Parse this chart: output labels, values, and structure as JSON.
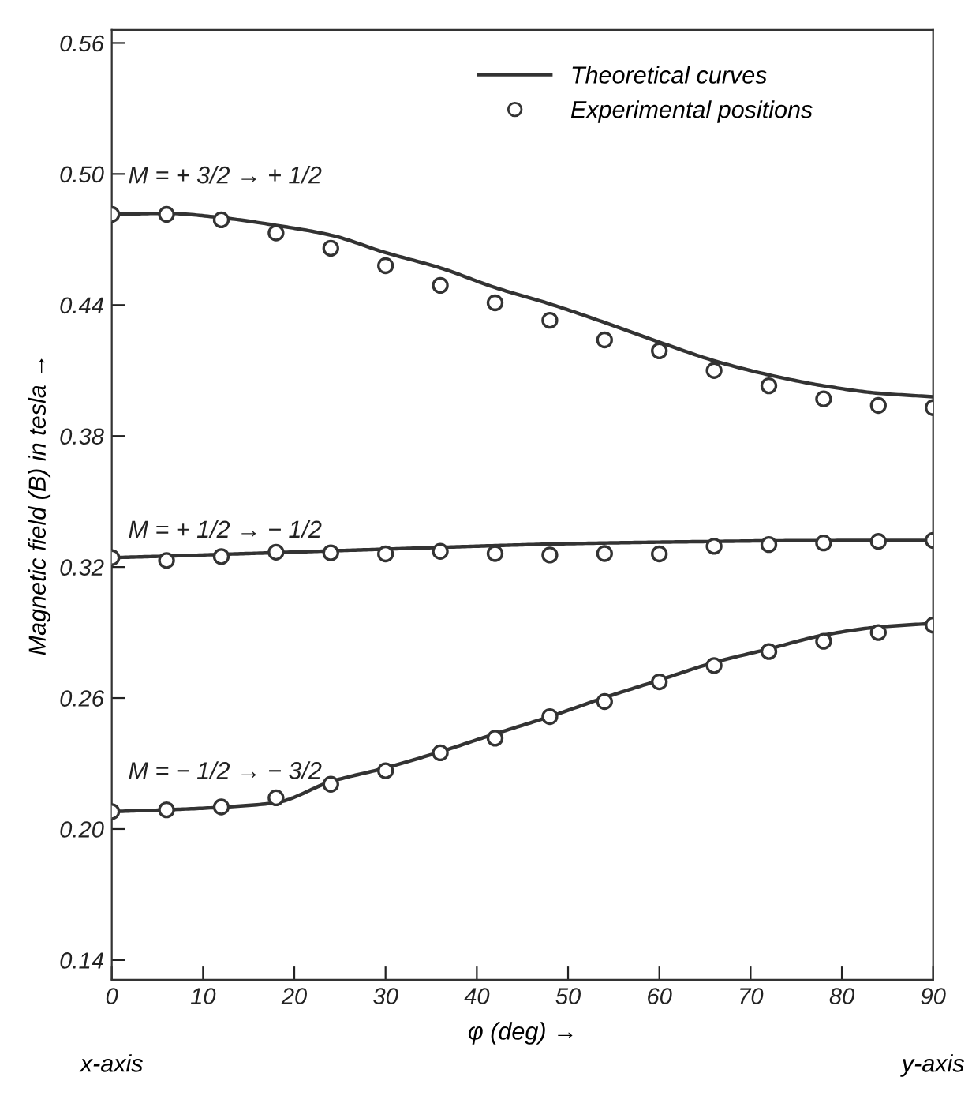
{
  "chart_data": {
    "type": "line",
    "xlabel": "φ (deg) →",
    "ylabel": "Magnetic field (B) in tesla →",
    "xlim": [
      0,
      90
    ],
    "xticks": [
      0,
      10,
      20,
      30,
      40,
      50,
      60,
      70,
      80,
      90
    ],
    "ylim": [
      0.131,
      0.566
    ],
    "yticks": [
      0.14,
      {
        "value": 0.2,
        "label": "0.20"
      },
      0.26,
      0.32,
      0.38,
      0.44,
      {
        "value": 0.5,
        "label": "0.50"
      },
      0.56
    ],
    "legend": "top right",
    "grid": false,
    "series": [
      {
        "name": "Theoretical curves",
        "color": "#333333",
        "marker": "none",
        "line_style": "solid",
        "x": [
          0,
          6,
          12,
          18,
          24,
          30,
          36,
          42,
          48,
          54,
          60,
          66,
          72,
          78,
          84,
          90
        ],
        "values": [
          0.4815,
          0.482,
          0.48,
          0.4765,
          0.472,
          0.464,
          0.457,
          0.448,
          0.4405,
          0.432,
          0.423,
          0.4145,
          0.408,
          0.403,
          0.3996,
          0.398
        ]
      },
      {
        "color": "#333333",
        "marker": "none",
        "line_style": "solid",
        "x": [
          0,
          6,
          12,
          18,
          24,
          30,
          36,
          42,
          48,
          54,
          60,
          66,
          72,
          78,
          84,
          90
        ],
        "values": [
          0.3243,
          0.325,
          0.3258,
          0.3266,
          0.3274,
          0.3282,
          0.329,
          0.3298,
          0.3305,
          0.331,
          0.3314,
          0.3317,
          0.332,
          0.3321,
          0.3322,
          0.3322
        ]
      },
      {
        "color": "#333333",
        "marker": "none",
        "line_style": "solid",
        "x": [
          0,
          6,
          12,
          18,
          24,
          30,
          36,
          42,
          48,
          54,
          60,
          66,
          72,
          78,
          84,
          90
        ],
        "values": [
          0.208,
          0.2088,
          0.21,
          0.2121,
          0.2217,
          0.228,
          0.2354,
          0.2436,
          0.2515,
          0.2602,
          0.2682,
          0.2763,
          0.2825,
          0.2888,
          0.2925,
          0.2942
        ]
      },
      {
        "name": "Experimental positions",
        "type": "scatter",
        "color": "#333333",
        "marker": "circle",
        "x": [
          0,
          6,
          12,
          18,
          24,
          30,
          36,
          42,
          48,
          54,
          60,
          66,
          72,
          78,
          84,
          90
        ],
        "values": [
          0.4815,
          0.4815,
          0.479,
          0.473,
          0.466,
          0.458,
          0.449,
          0.441,
          0.433,
          0.424,
          0.419,
          0.41,
          0.403,
          0.397,
          0.394,
          0.393
        ]
      },
      {
        "type": "scatter",
        "color": "#333333",
        "marker": "circle",
        "x": [
          0,
          6,
          12,
          18,
          24,
          30,
          36,
          42,
          48,
          54,
          60,
          66,
          72,
          78,
          84,
          90
        ],
        "values": [
          0.3243,
          0.323,
          0.3248,
          0.3268,
          0.3265,
          0.326,
          0.3272,
          0.3262,
          0.3255,
          0.3262,
          0.326,
          0.3295,
          0.3303,
          0.331,
          0.3317,
          0.3322
        ]
      },
      {
        "type": "scatter",
        "color": "#333333",
        "marker": "circle",
        "x": [
          0,
          6,
          12,
          18,
          24,
          30,
          36,
          42,
          48,
          54,
          60,
          66,
          72,
          78,
          84,
          90
        ],
        "values": [
          0.208,
          0.2088,
          0.2101,
          0.2143,
          0.2205,
          0.2267,
          0.2349,
          0.2416,
          0.2515,
          0.2584,
          0.2674,
          0.2749,
          0.2813,
          0.286,
          0.29,
          0.2934
        ]
      }
    ],
    "annotations": [
      "M = + 3/2 → + 1/2",
      "M = + 1/2 → − 1/2",
      "M = − 1/2 → − 3/2",
      "x-axis",
      "y-axis"
    ]
  }
}
